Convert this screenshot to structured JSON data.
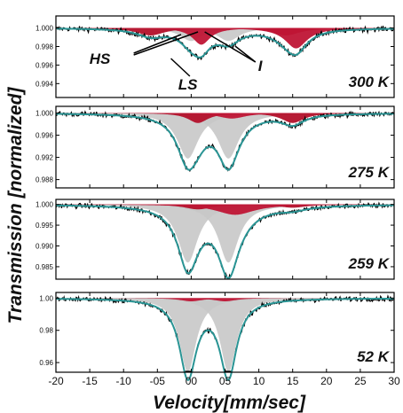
{
  "chart_data": {
    "type": "line",
    "xlabel": "Velocity[mm/sec]",
    "ylabel": "Transmission [normalized]",
    "xlim": [
      -20,
      30
    ],
    "x_ticks": [
      "-20",
      "-15",
      "-10",
      "-05",
      "00",
      "05",
      "10",
      "15",
      "20",
      "25",
      "30"
    ],
    "colors": {
      "data": "#000000",
      "fit": "#2a9595",
      "HS": "#b3102a",
      "I": "#bf1535",
      "LS": "#c8c8c8"
    },
    "annotations": [
      "HS",
      "I",
      "LS"
    ],
    "panels": [
      {
        "temperature": "300 K",
        "ylim": [
          0.9925,
          1.0013
        ],
        "y_ticks": [
          "1.000",
          "0.998",
          "0.996",
          "0.994"
        ],
        "baseline": 1.0,
        "sites": {
          "LS": [
            {
              "center": 0.0,
              "depth": 0.0014,
              "hwhm": 2.0
            },
            {
              "center": 5.5,
              "depth": 0.0014,
              "hwhm": 2.0
            }
          ],
          "HS": [
            {
              "center": -6.0,
              "depth": 0.0008,
              "hwhm": 2.5
            },
            {
              "center": 14.0,
              "depth": 0.0008,
              "hwhm": 2.5
            }
          ],
          "I": [
            {
              "center": 1.5,
              "depth": 0.0018,
              "hwhm": 1.6
            },
            {
              "center": 15.5,
              "depth": 0.0022,
              "hwhm": 2.0
            }
          ]
        }
      },
      {
        "temperature": "275 K",
        "ylim": [
          0.9865,
          1.0012
        ],
        "y_ticks": [
          "1.000",
          "0.996",
          "0.992",
          "0.988"
        ],
        "baseline": 1.0,
        "sites": {
          "LS": [
            {
              "center": -0.5,
              "depth": 0.0082,
              "hwhm": 1.9
            },
            {
              "center": 5.5,
              "depth": 0.0082,
              "hwhm": 1.9
            }
          ],
          "HS": [
            {
              "center": 1.0,
              "depth": 0.0018,
              "hwhm": 1.8
            },
            {
              "center": 15.0,
              "depth": 0.0018,
              "hwhm": 2.0
            }
          ],
          "I": [
            {
              "center": 6.0,
              "depth": 0.001,
              "hwhm": 2.5
            }
          ]
        }
      },
      {
        "temperature": "259 K",
        "ylim": [
          0.982,
          1.0012
        ],
        "y_ticks": [
          "1.000",
          "0.995",
          "0.990",
          "0.985"
        ],
        "baseline": 1.0,
        "sites": {
          "LS": [
            {
              "center": -0.5,
              "depth": 0.014,
              "hwhm": 1.8
            },
            {
              "center": 5.5,
              "depth": 0.014,
              "hwhm": 1.8
            }
          ],
          "HS": [
            {
              "center": 1.0,
              "depth": 0.0012,
              "hwhm": 2.5
            },
            {
              "center": 15.0,
              "depth": 0.0008,
              "hwhm": 2.5
            }
          ],
          "I": [
            {
              "center": 6.5,
              "depth": 0.0025,
              "hwhm": 3.5
            }
          ]
        }
      },
      {
        "temperature": "52 K",
        "ylim": [
          0.954,
          1.0035
        ],
        "y_ticks": [
          "1.00",
          "0.98",
          "0.96"
        ],
        "baseline": 1.0,
        "sites": {
          "LS": [
            {
              "center": -0.5,
              "depth": 0.046,
              "hwhm": 1.5
            },
            {
              "center": 5.5,
              "depth": 0.046,
              "hwhm": 1.5
            }
          ],
          "HS": [],
          "I": [
            {
              "center": 0.0,
              "depth": 0.002,
              "hwhm": 2.0
            },
            {
              "center": 5.0,
              "depth": 0.002,
              "hwhm": 2.0
            }
          ]
        }
      }
    ]
  }
}
